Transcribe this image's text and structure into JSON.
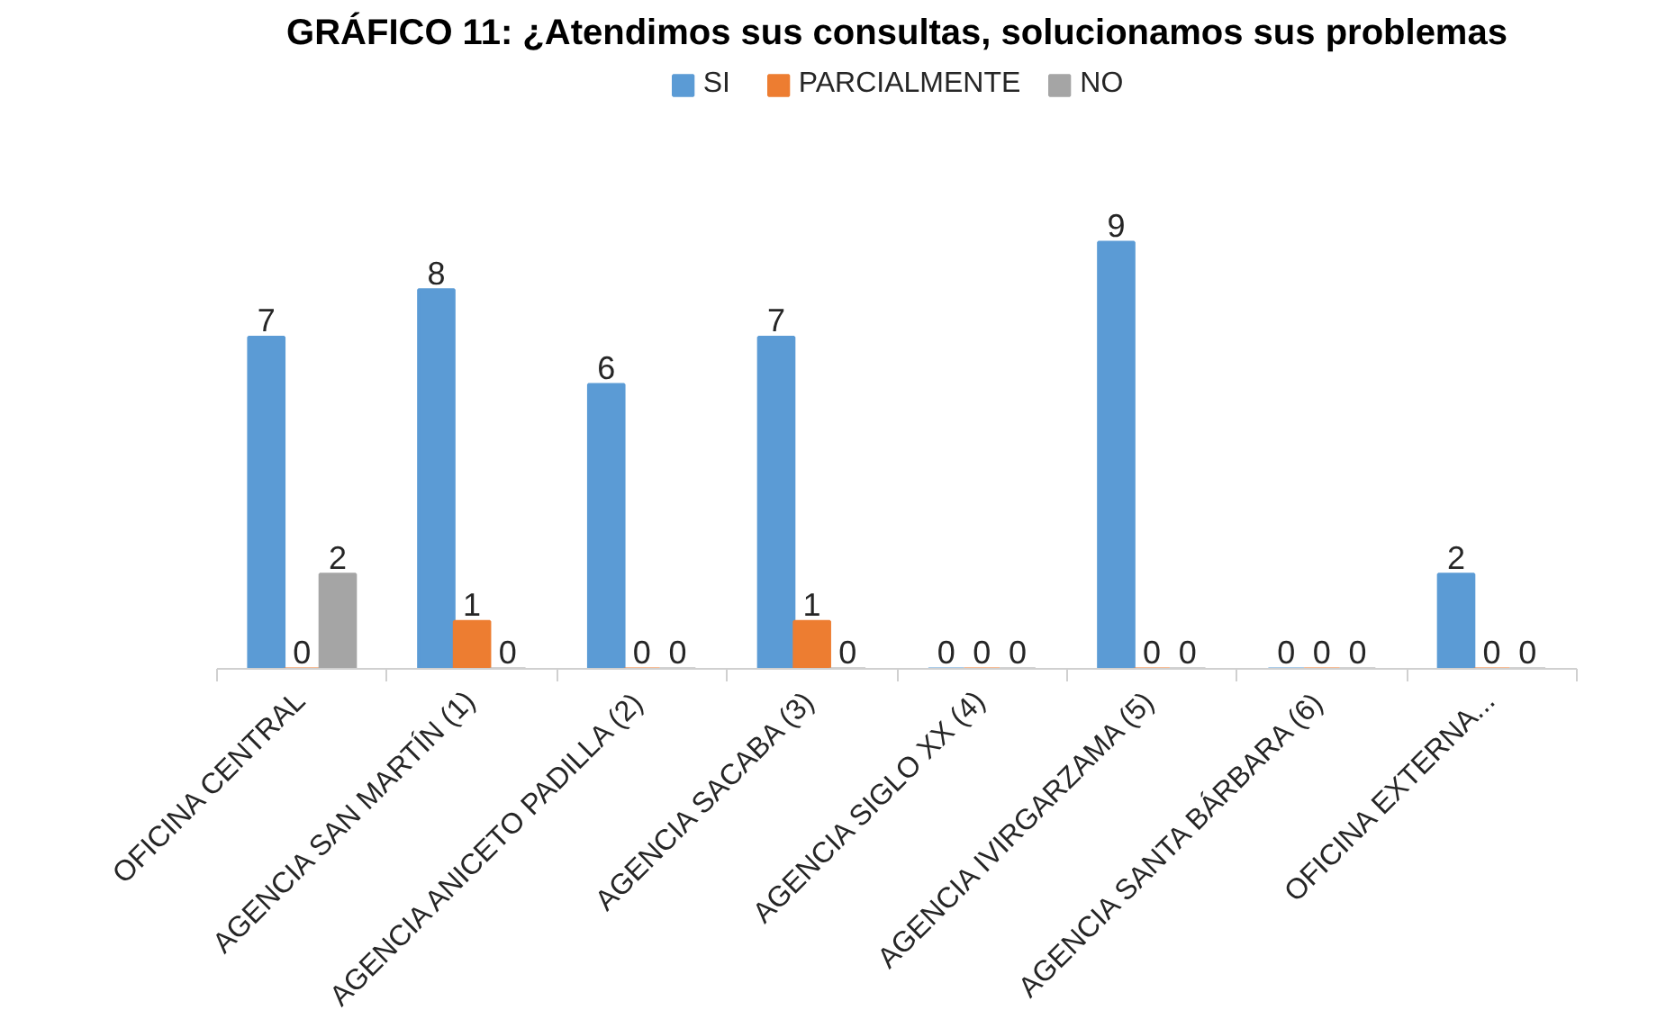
{
  "chart_data": {
    "type": "bar",
    "title": "GRÁFICO 11: ¿Atendimos sus consultas, solucionamos sus problemas",
    "categories": [
      "OFICINA CENTRAL",
      "AGENCIA SAN MARTÍN (1)",
      "AGENCIA ANICETO PADILLA (2)",
      "AGENCIA SACABA (3)",
      "AGENCIA SIGLO XX (4)",
      "AGENCIA IVIRGARZAMA (5)",
      "AGENCIA SANTA BÁRBARA (6)",
      "OFICINA EXTERNA..."
    ],
    "series": [
      {
        "name": "SI",
        "color": "#5b9bd5",
        "values": [
          7,
          8,
          6,
          7,
          0,
          9,
          0,
          2
        ]
      },
      {
        "name": "PARCIALMENTE",
        "color": "#ed7d31",
        "values": [
          0,
          1,
          0,
          1,
          0,
          0,
          0,
          0
        ]
      },
      {
        "name": "NO",
        "color": "#a5a5a5",
        "values": [
          2,
          0,
          0,
          0,
          0,
          0,
          0,
          0
        ]
      }
    ],
    "data_labels": true,
    "legend": "top",
    "tick_labels": "x"
  }
}
